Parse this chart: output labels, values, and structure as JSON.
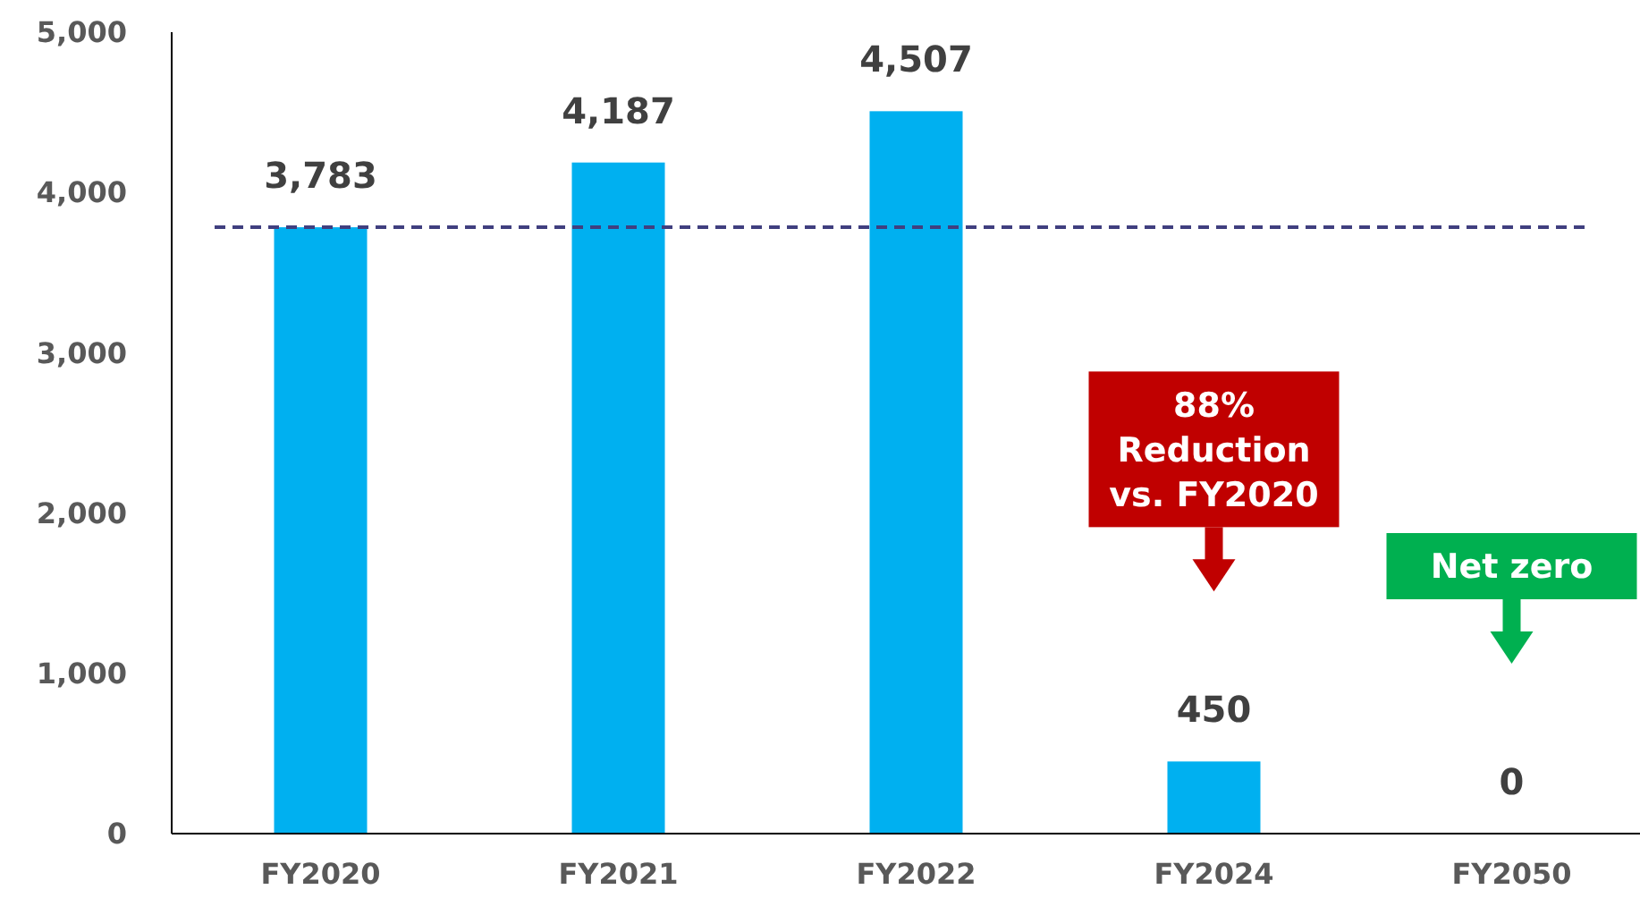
{
  "chart_data": {
    "type": "bar",
    "categories": [
      "FY2020",
      "FY2021",
      "FY2022",
      "FY2024",
      "FY2050"
    ],
    "values": [
      3783,
      4187,
      4507,
      450,
      0
    ],
    "color": "#00b0f0",
    "value_labels": [
      "3,783",
      "4,187",
      "4,507",
      "450",
      "0"
    ],
    "ylim": [
      0,
      5000
    ],
    "yticks": [
      0,
      {
        "value": 1000,
        "label": "1,000"
      },
      {
        "value": 2000,
        "label": "2,000"
      },
      {
        "value": 3000,
        "label": "3,000"
      },
      {
        "value": 4000,
        "label": "4,000"
      },
      {
        "value": 5000,
        "label": "5,000"
      }
    ],
    "grid": false,
    "ref_lines": [
      {
        "axis": "y",
        "value": 3783,
        "color": "#403f7f",
        "line_style": "dashed"
      }
    ],
    "annotations": [
      "88%\nReduction\nvs. FY2020",
      "Net zero"
    ]
  }
}
